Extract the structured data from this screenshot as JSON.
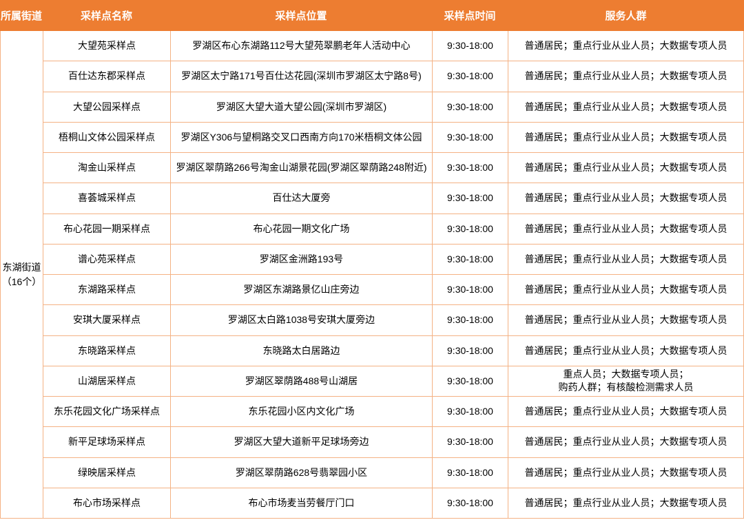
{
  "colors": {
    "header_bg": "#ED7D31",
    "header_text": "#FFFFFF",
    "border": "#F4B183",
    "row_bg": "#FFFFFF",
    "body_text": "#000000"
  },
  "table": {
    "headers": [
      {
        "label": "所属街道"
      },
      {
        "label": "采样点名称"
      },
      {
        "label": "采样点位置"
      },
      {
        "label": "采样点时间"
      },
      {
        "label": "服务人群"
      }
    ],
    "street_cell": "东湖街道\n（16个）",
    "rows": [
      {
        "name": "大望苑采样点",
        "location": "罗湖区布心东湖路112号大望苑翠鹏老年人活动中心",
        "time": "9:30-18:00",
        "audience": "普通居民；重点行业从业人员；大数据专项人员"
      },
      {
        "name": "百仕达东郡采样点",
        "location": "罗湖区太宁路171号百仕达花园(深圳市罗湖区太宁路8号)",
        "time": "9:30-18:00",
        "audience": "普通居民；重点行业从业人员；大数据专项人员"
      },
      {
        "name": "大望公园采样点",
        "location": "罗湖区大望大道大望公园(深圳市罗湖区)",
        "time": "9:30-18:00",
        "audience": "普通居民；重点行业从业人员；大数据专项人员"
      },
      {
        "name": "梧桐山文体公园采样点",
        "location": "罗湖区Y306与望桐路交叉口西南方向170米梧桐文体公园",
        "time": "9:30-18:00",
        "audience": "普通居民；重点行业从业人员；大数据专项人员"
      },
      {
        "name": "淘金山采样点",
        "location": "罗湖区翠荫路266号淘金山湖景花园(罗湖区翠荫路248附近)",
        "time": "9:30-18:00",
        "audience": "普通居民；重点行业从业人员；大数据专项人员"
      },
      {
        "name": "喜荟城采样点",
        "location": "百仕达大厦旁",
        "time": "9:30-18:00",
        "audience": "普通居民；重点行业从业人员；大数据专项人员"
      },
      {
        "name": "布心花园一期采样点",
        "location": "布心花园一期文化广场",
        "time": "9:30-18:00",
        "audience": "普通居民；重点行业从业人员；大数据专项人员"
      },
      {
        "name": "谱心苑采样点",
        "location": "罗湖区金洲路193号",
        "time": "9:30-18:00",
        "audience": "普通居民；重点行业从业人员；大数据专项人员"
      },
      {
        "name": "东湖路采样点",
        "location": "罗湖区东湖路景亿山庄旁边",
        "time": "9:30-18:00",
        "audience": "普通居民；重点行业从业人员；大数据专项人员"
      },
      {
        "name": "安琪大厦采样点",
        "location": "罗湖区太白路1038号安琪大厦旁边",
        "time": "9:30-18:00",
        "audience": "普通居民；重点行业从业人员；大数据专项人员"
      },
      {
        "name": "东晓路采样点",
        "location": "东晓路太白居路边",
        "time": "9:30-18:00",
        "audience": "普通居民；重点行业从业人员；大数据专项人员"
      },
      {
        "name": "山湖居采样点",
        "location": "罗湖区翠荫路488号山湖居",
        "time": "9:30-18:00",
        "audience": "重点人员；大数据专项人员；\n购药人群；有核酸检测需求人员"
      },
      {
        "name": "东乐花园文化广场采样点",
        "location": "东乐花园小区内文化广场",
        "time": "9:30-18:00",
        "audience": "普通居民；重点行业从业人员；大数据专项人员"
      },
      {
        "name": "新平足球场采样点",
        "location": "罗湖区大望大道新平足球场旁边",
        "time": "9:30-18:00",
        "audience": "普通居民；重点行业从业人员；大数据专项人员"
      },
      {
        "name": "绿映居采样点",
        "location": "罗湖区翠荫路628号翡翠园小区",
        "time": "9:30-18:00",
        "audience": "普通居民；重点行业从业人员；大数据专项人员"
      },
      {
        "name": "布心市场采样点",
        "location": "布心市场麦当劳餐厅门口",
        "time": "9:30-18:00",
        "audience": "普通居民；重点行业从业人员；大数据专项人员"
      }
    ]
  }
}
